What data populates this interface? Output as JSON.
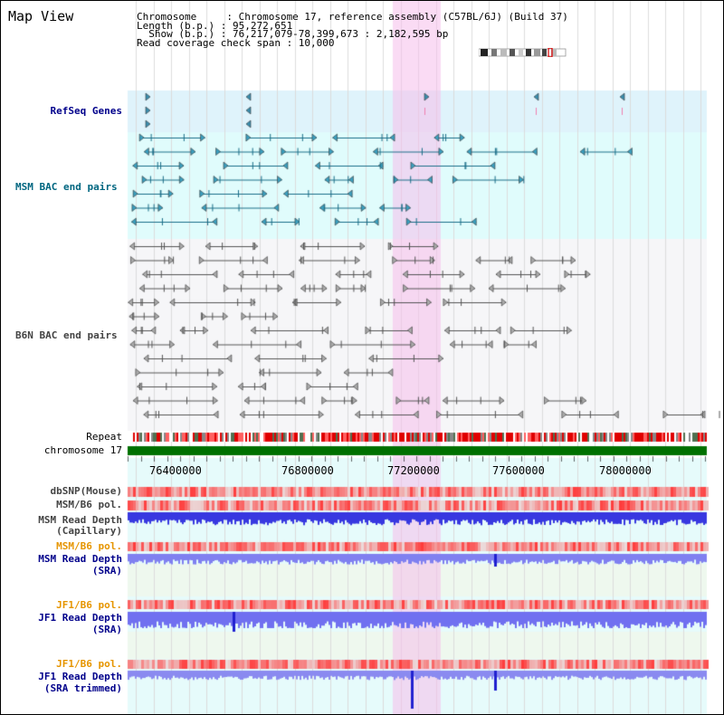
{
  "page": {
    "title": "Map View"
  },
  "info": {
    "chromosome_line": "Chromosome     : Chromosome 17, reference assembly (C57BL/6J) (Build 37)",
    "length_line": "Length (b.p.) : 95,272,651",
    "show_line": "  Show (b.p.) : 76,217,079-78,399,673 : 2,182,595 bp",
    "coverage_line": "Read coverage check span : 10,000"
  },
  "tracks": {
    "refseq": "RefSeq Genes",
    "msm_bac": "MSM BAC end pairs",
    "b6n_bac": "B6N BAC end pairs",
    "repeat": "Repeat",
    "chromosome": "chromosome 17",
    "dbsnp": "dbSNP(Mouse)",
    "msm_b6_pol_1": "MSM/B6 pol.",
    "msm_read_cap_1": "MSM Read Depth",
    "msm_read_cap_2": "(Capillary)",
    "msm_b6_pol_2": "MSM/B6 pol.",
    "msm_read_sra_1": "MSM Read Depth",
    "msm_read_sra_2": "(SRA)",
    "jf1_b6_pol_1": "JF1/B6 pol.",
    "jf1_read_sra_1": "JF1 Read Depth",
    "jf1_read_sra_2": "(SRA)",
    "jf1_b6_pol_2": "JF1/B6 pol.",
    "jf1_read_trim_1": "JF1 Read Depth",
    "jf1_read_trim_2": "(SRA trimmed)"
  },
  "axis": {
    "ticks": [
      "76400000",
      "76800000",
      "77200000",
      "77600000",
      "78000000"
    ]
  },
  "colors": {
    "refseq_bg": "#dff3fb",
    "msm_bg": "#e0fcfc",
    "highlight": "#f8d8f4",
    "label_blue": "#00008b",
    "label_teal": "#006680",
    "label_gray": "#444444",
    "label_orange": "#e69500",
    "chrom_green": "#007000"
  }
}
